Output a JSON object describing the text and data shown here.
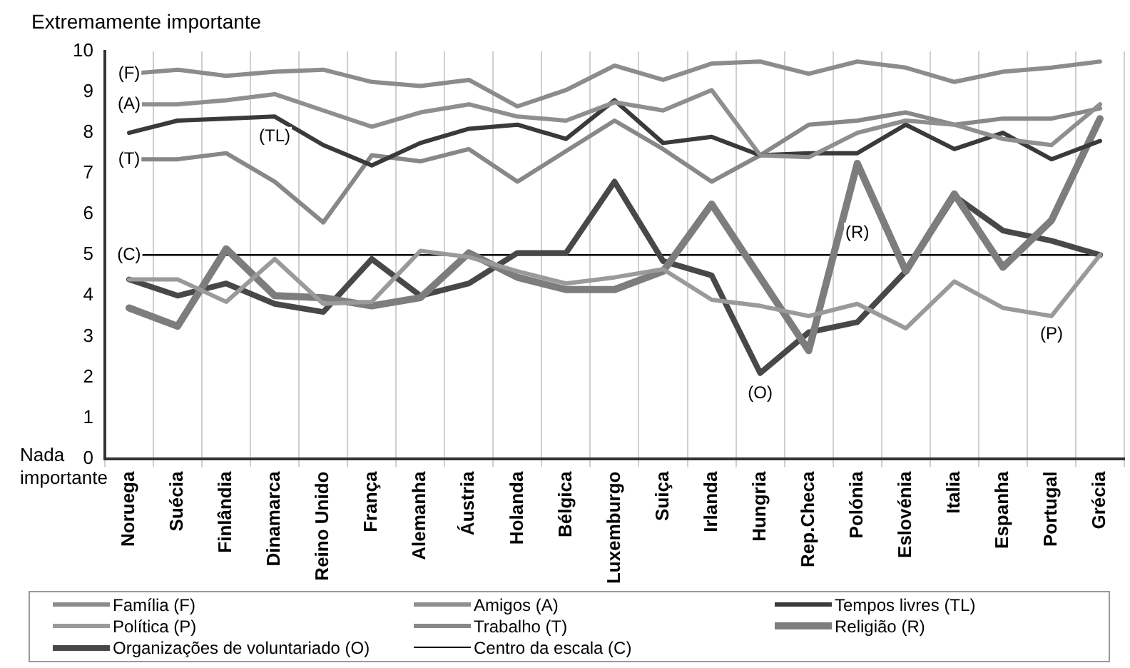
{
  "chart_data": {
    "type": "line",
    "categories": [
      "Noruega",
      "Suécia",
      "Finlândia",
      "Dinamarca",
      "Reino Unido",
      "França",
      "Alemanha",
      "Áustria",
      "Holanda",
      "Bélgica",
      "Luxemburgo",
      "Suiça",
      "Irlanda",
      "Hungria",
      "Rep.Checa",
      "Polónia",
      "Eslovénia",
      "Italia",
      "Espanha",
      "Portugal",
      "Grécia"
    ],
    "series": [
      {
        "name": "Família (F)",
        "color": "#8c8c8c",
        "values": [
          9.45,
          9.55,
          9.4,
          9.5,
          9.55,
          9.25,
          9.15,
          9.3,
          8.65,
          9.05,
          9.65,
          9.3,
          9.7,
          9.75,
          9.45,
          9.75,
          9.6,
          9.25,
          9.5,
          9.6,
          9.75
        ]
      },
      {
        "name": "Amigos (A)",
        "color": "#8f8f8f",
        "values": [
          8.7,
          8.7,
          8.8,
          8.95,
          8.55,
          8.15,
          8.5,
          8.7,
          8.4,
          8.3,
          8.75,
          8.55,
          9.05,
          7.45,
          7.4,
          8.0,
          8.3,
          8.2,
          7.85,
          7.7,
          8.7
        ]
      },
      {
        "name": "Tempos livres (TL)",
        "color": "#3a3a3a",
        "values": [
          8.0,
          8.3,
          8.35,
          8.4,
          7.7,
          7.2,
          7.75,
          8.1,
          8.2,
          7.85,
          8.8,
          7.75,
          7.9,
          7.45,
          7.5,
          7.5,
          8.2,
          7.6,
          8.0,
          7.35,
          7.8
        ]
      },
      {
        "name": "Política (P)",
        "color": "#9a9a9a",
        "values": [
          4.4,
          4.4,
          3.85,
          4.9,
          3.8,
          3.85,
          5.1,
          4.95,
          4.6,
          4.3,
          4.45,
          4.65,
          3.9,
          3.75,
          3.5,
          3.8,
          3.2,
          4.35,
          3.7,
          3.5,
          5.0
        ]
      },
      {
        "name": "Trabalho (T)",
        "color": "#888888",
        "values": [
          7.35,
          7.35,
          7.5,
          6.8,
          5.8,
          7.45,
          7.3,
          7.6,
          6.8,
          7.55,
          8.3,
          7.6,
          6.8,
          7.45,
          8.2,
          8.3,
          8.5,
          8.2,
          8.35,
          8.35,
          8.6
        ]
      },
      {
        "name": "Religião (R)",
        "color": "#7d7d7d",
        "values": [
          3.7,
          3.25,
          5.15,
          4.0,
          3.95,
          3.75,
          3.95,
          5.05,
          4.45,
          4.15,
          4.15,
          4.6,
          6.25,
          4.45,
          2.65,
          7.25,
          4.6,
          6.5,
          4.7,
          5.85,
          8.35
        ]
      },
      {
        "name": "Organizações de voluntariado (O)",
        "color": "#484848",
        "values": [
          4.4,
          4.0,
          4.3,
          3.8,
          3.6,
          4.9,
          4.0,
          4.3,
          5.05,
          5.05,
          6.8,
          4.85,
          4.5,
          2.1,
          3.1,
          3.35,
          4.6,
          6.45,
          5.6,
          5.35,
          5.0
        ]
      },
      {
        "name": "Centro da escala (C)",
        "color": "#000000",
        "values": [
          5,
          5,
          5,
          5,
          5,
          5,
          5,
          5,
          5,
          5,
          5,
          5,
          5,
          5,
          5,
          5,
          5,
          5,
          5,
          5,
          5
        ]
      }
    ],
    "ylim": [
      0,
      10
    ],
    "yticks": [
      0,
      1,
      2,
      3,
      4,
      5,
      6,
      7,
      8,
      9,
      10
    ],
    "grid": "x",
    "legend": "bottom",
    "marker": "none",
    "line_style": "solid",
    "annotations": [
      "Extremamente importante",
      "Nada importante",
      {
        "text": "(F)",
        "x": "Noruega",
        "y": 9.45
      },
      {
        "text": "(A)",
        "x": "Noruega",
        "y": 8.7
      },
      {
        "text": "(T)",
        "x": "Noruega",
        "y": 7.35
      },
      {
        "text": "(C)",
        "x": "Noruega",
        "y": 5
      },
      {
        "text": "(TL)",
        "x": "Dinamarca",
        "y": 7.9
      },
      {
        "text": "(O)",
        "x": "Hungria",
        "y": 1.6
      },
      {
        "text": "(R)",
        "x": "Polónia",
        "y": 5.55
      },
      {
        "text": "(P)",
        "x": "Portugal",
        "y": 3.05
      }
    ]
  }
}
